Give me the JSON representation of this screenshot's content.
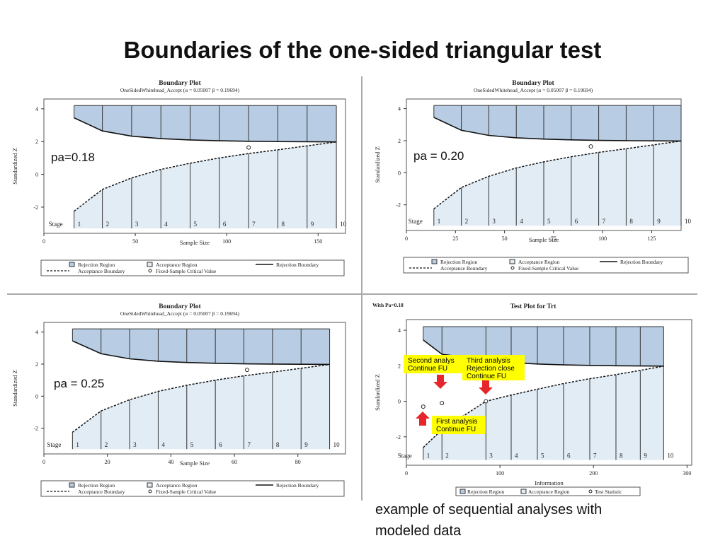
{
  "slide_title": "Boundaries of the one-sided triangular test",
  "caption": [
    "example of sequential analyses with",
    "modeled data"
  ],
  "colors": {
    "rejection": "#b8cde3",
    "acceptance": "#e2ecf5",
    "highlight": "#ffff00",
    "arrow": "#e6262a"
  },
  "legend_items": {
    "rejection_region": "Rejection Region",
    "acceptance_region": "Acceptance Region",
    "rejection_boundary": "Rejection Boundary",
    "acceptance_boundary": "Acceptance Boundary",
    "fixed_sample": "Fixed-Sample Critical Value",
    "test_statistic": "Test Statistic"
  },
  "chart_data": [
    {
      "type": "area",
      "title": "Boundary Plot",
      "subtitle": "OneSidedWhitehead_Accept (α = 0.05007  β = 0.19694)",
      "xlabel": "Sample Size",
      "ylabel": "Standardized Z",
      "pa_label": "pa=0.18",
      "xlim": [
        0,
        165
      ],
      "ylim": [
        -3.6,
        4.6
      ],
      "xticks": [
        0,
        50,
        100,
        150
      ],
      "yticks": [
        -2,
        0,
        2,
        4
      ],
      "stage_label": "Stage",
      "stages": [
        "1",
        "2",
        "3",
        "4",
        "5",
        "6",
        "7",
        "8",
        "9",
        "10"
      ],
      "stage_x": [
        16.5,
        32,
        48,
        64,
        80,
        96,
        112,
        128,
        144,
        160
      ],
      "rejection_boundary": [
        3.45,
        2.65,
        2.33,
        2.18,
        2.1,
        2.05,
        2.02,
        2.0,
        1.99,
        1.98
      ],
      "acceptance_boundary": [
        -2.25,
        -0.92,
        -0.22,
        0.3,
        0.68,
        1.0,
        1.27,
        1.5,
        1.74,
        1.98
      ],
      "fixed_sample": {
        "x": 112,
        "z": 1.64
      }
    },
    {
      "type": "area",
      "title": "Boundary Plot",
      "subtitle": "OneSidedWhitehead_Accept (α = 0.05007  β = 0.19694)",
      "xlabel": "Sample Size",
      "ylabel": "Standardized Z",
      "pa_label": "pa = 0.20",
      "xlim": [
        0,
        140
      ],
      "ylim": [
        -3.6,
        4.6
      ],
      "xticks": [
        0,
        25,
        50,
        75,
        100,
        125
      ],
      "yticks": [
        -2,
        0,
        2,
        4
      ],
      "stage_label": "Stage",
      "stages": [
        "1",
        "2",
        "3",
        "4",
        "5",
        "6",
        "7",
        "8",
        "9",
        "10"
      ],
      "stage_x": [
        14,
        28,
        42,
        56,
        70,
        84,
        98,
        112,
        126,
        140
      ],
      "rejection_boundary": [
        3.45,
        2.65,
        2.33,
        2.18,
        2.1,
        2.05,
        2.02,
        2.0,
        1.99,
        1.98
      ],
      "acceptance_boundary": [
        -2.25,
        -0.92,
        -0.22,
        0.3,
        0.68,
        1.0,
        1.27,
        1.5,
        1.74,
        1.98
      ],
      "fixed_sample": {
        "x": 94,
        "z": 1.64
      }
    },
    {
      "type": "area",
      "title": "Boundary Plot",
      "subtitle": "OneSidedWhitehead_Accept (α = 0.05007  β = 0.19694)",
      "xlabel": "Sample Size",
      "ylabel": "Standardized Z",
      "pa_label": "pa = 0.25",
      "xlim": [
        0,
        95
      ],
      "ylim": [
        -3.6,
        4.6
      ],
      "xticks": [
        0,
        20,
        40,
        60,
        80
      ],
      "yticks": [
        -2,
        0,
        2,
        4
      ],
      "stage_label": "Stage",
      "stages": [
        "1",
        "2",
        "3",
        "4",
        "5",
        "6",
        "7",
        "8",
        "9",
        "10"
      ],
      "stage_x": [
        9,
        18,
        27,
        36,
        45,
        54,
        63,
        72,
        81,
        90
      ],
      "rejection_boundary": [
        3.45,
        2.65,
        2.33,
        2.18,
        2.1,
        2.05,
        2.02,
        2.0,
        1.99,
        1.98
      ],
      "acceptance_boundary": [
        -2.25,
        -0.92,
        -0.22,
        0.3,
        0.68,
        1.0,
        1.27,
        1.5,
        1.74,
        1.98
      ],
      "fixed_sample": {
        "x": 64,
        "z": 1.64
      }
    },
    {
      "type": "area",
      "title": "Test Plot for Trt",
      "header_note": "With Pa=0.18",
      "xlabel": "Information",
      "ylabel": "Standardized Z",
      "xlim": [
        0,
        305
      ],
      "ylim": [
        -3.6,
        4.6
      ],
      "xticks": [
        0,
        100,
        200,
        300
      ],
      "yticks": [
        -2,
        0,
        2,
        4
      ],
      "stage_label": "Stage",
      "stages": [
        "1",
        "2",
        "3",
        "4",
        "5",
        "6",
        "7",
        "8",
        "9",
        "10"
      ],
      "stage_x": [
        18,
        38,
        85,
        112,
        140,
        168,
        196,
        224,
        250,
        275
      ],
      "rejection_boundary": [
        3.45,
        2.65,
        2.33,
        2.18,
        2.1,
        2.05,
        2.02,
        2.0,
        1.99,
        1.98
      ],
      "acceptance_boundary": [
        -2.6,
        -1.6,
        0.0,
        0.35,
        0.68,
        1.0,
        1.27,
        1.5,
        1.74,
        1.98
      ],
      "test_statistic": [
        {
          "x": 18,
          "z": -0.3
        },
        {
          "x": 38,
          "z": -0.1
        },
        {
          "x": 85,
          "z": 0.0
        }
      ],
      "annotations": [
        {
          "lines": [
            "First analysis",
            "Continue FU"
          ]
        },
        {
          "lines": [
            "Second analys",
            "Continue FU"
          ]
        },
        {
          "lines": [
            "Third analysis",
            "Rejection close",
            "Continue FU"
          ]
        }
      ]
    }
  ]
}
